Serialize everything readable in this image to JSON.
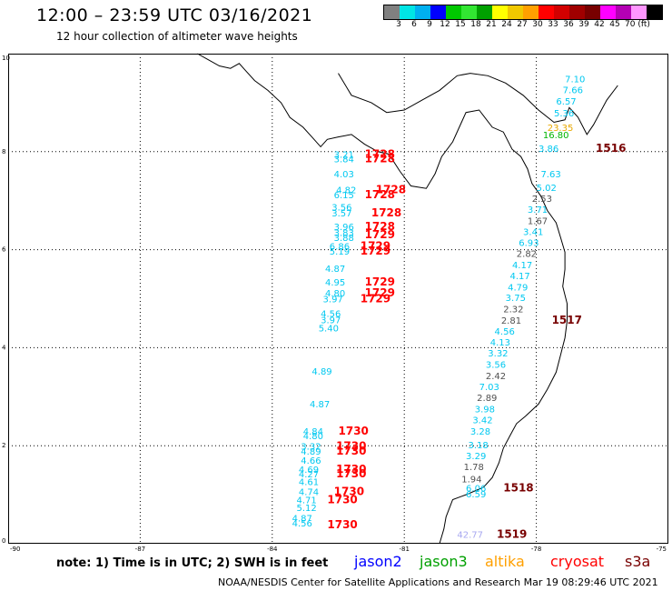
{
  "title": "12:00 – 23:59 UTC 03/16/2021",
  "subtitle": "12 hour collection of altimeter wave heights",
  "scale": {
    "colors": [
      "#808080",
      "#00e5e5",
      "#00b0f0",
      "#0000ff",
      "#00c800",
      "#32e632",
      "#00a000",
      "#ffff00",
      "#f0c800",
      "#ffa000",
      "#ff0000",
      "#d20000",
      "#a00000",
      "#780000",
      "#ff00ff",
      "#b400b4",
      "#ff96ff",
      "#000000"
    ],
    "labels": [
      "3",
      "6",
      "9",
      "12",
      "15",
      "18",
      "21",
      "24",
      "27",
      "30",
      "33",
      "36",
      "39",
      "42",
      "45",
      "70 (ft)"
    ]
  },
  "axes": {
    "x_ticks": [
      "-90",
      "-87",
      "-84",
      "-81",
      "-78",
      "-75"
    ],
    "y_ticks": [
      "0",
      "2",
      "4",
      "6",
      "8",
      "10"
    ],
    "lon_range": [
      -90,
      -75
    ],
    "lat_range": [
      0,
      10
    ]
  },
  "observations": [
    {
      "text": "7.10",
      "lon": -77.35,
      "lat": 9.42,
      "color": "#00c8f0"
    },
    {
      "text": "7.66",
      "lon": -77.4,
      "lat": 9.19,
      "color": "#00c8f0"
    },
    {
      "text": "6.57",
      "lon": -77.55,
      "lat": 8.96,
      "color": "#00c8f0"
    },
    {
      "text": "5.36",
      "lon": -77.6,
      "lat": 8.72,
      "color": "#00c8f0"
    },
    {
      "text": "23.35",
      "lon": -77.75,
      "lat": 8.42,
      "color": "#e8a800"
    },
    {
      "text": "16.80",
      "lon": -77.85,
      "lat": 8.27,
      "color": "#00b400"
    },
    {
      "text": "3.86",
      "lon": -77.95,
      "lat": 8.0,
      "color": "#00c8f0"
    },
    {
      "text": "1516",
      "lon": -76.65,
      "lat": 8.0,
      "color": "#780000"
    },
    {
      "text": "7.63",
      "lon": -77.9,
      "lat": 7.48,
      "color": "#00c8f0"
    },
    {
      "text": "5.02",
      "lon": -78.0,
      "lat": 7.2,
      "color": "#00c8f0"
    },
    {
      "text": "2.53",
      "lon": -78.1,
      "lat": 6.98,
      "color": "#505050"
    },
    {
      "text": "3.71",
      "lon": -78.2,
      "lat": 6.75,
      "color": "#00c8f0"
    },
    {
      "text": "1.67",
      "lon": -78.2,
      "lat": 6.52,
      "color": "#505050"
    },
    {
      "text": "3.41",
      "lon": -78.3,
      "lat": 6.3,
      "color": "#00c8f0"
    },
    {
      "text": "6.93",
      "lon": -78.4,
      "lat": 6.08,
      "color": "#00c8f0"
    },
    {
      "text": "2.82",
      "lon": -78.45,
      "lat": 5.85,
      "color": "#505050"
    },
    {
      "text": "4.17",
      "lon": -78.55,
      "lat": 5.62,
      "color": "#00c8f0"
    },
    {
      "text": "4.17",
      "lon": -78.6,
      "lat": 5.4,
      "color": "#00c8f0"
    },
    {
      "text": "4.79",
      "lon": -78.65,
      "lat": 5.17,
      "color": "#00c8f0"
    },
    {
      "text": "3.75",
      "lon": -78.7,
      "lat": 4.95,
      "color": "#00c8f0"
    },
    {
      "text": "2.32",
      "lon": -78.75,
      "lat": 4.72,
      "color": "#505050"
    },
    {
      "text": "2.81",
      "lon": -78.8,
      "lat": 4.49,
      "color": "#505050"
    },
    {
      "text": "1517",
      "lon": -77.65,
      "lat": 4.49,
      "color": "#780000"
    },
    {
      "text": "4.56",
      "lon": -78.95,
      "lat": 4.27,
      "color": "#00c8f0"
    },
    {
      "text": "4.13",
      "lon": -79.05,
      "lat": 4.04,
      "color": "#00c8f0"
    },
    {
      "text": "3.32",
      "lon": -79.1,
      "lat": 3.82,
      "color": "#00c8f0"
    },
    {
      "text": "3.56",
      "lon": -79.15,
      "lat": 3.59,
      "color": "#00c8f0"
    },
    {
      "text": "2.42",
      "lon": -79.15,
      "lat": 3.36,
      "color": "#505050"
    },
    {
      "text": "7.03",
      "lon": -79.3,
      "lat": 3.14,
      "color": "#00c8f0"
    },
    {
      "text": "2.89",
      "lon": -79.35,
      "lat": 2.91,
      "color": "#505050"
    },
    {
      "text": "3.98",
      "lon": -79.4,
      "lat": 2.68,
      "color": "#00c8f0"
    },
    {
      "text": "3.42",
      "lon": -79.45,
      "lat": 2.46,
      "color": "#00c8f0"
    },
    {
      "text": "3.28",
      "lon": -79.5,
      "lat": 2.23,
      "color": "#00c8f0"
    },
    {
      "text": "3.18",
      "lon": -79.55,
      "lat": 1.95,
      "color": "#00c8f0"
    },
    {
      "text": "3.29",
      "lon": -79.6,
      "lat": 1.73,
      "color": "#00c8f0"
    },
    {
      "text": "1.78",
      "lon": -79.65,
      "lat": 1.5,
      "color": "#505050"
    },
    {
      "text": "1.94",
      "lon": -79.7,
      "lat": 1.25,
      "color": "#505050"
    },
    {
      "text": "6.06",
      "lon": -79.6,
      "lat": 1.07,
      "color": "#00c8f0"
    },
    {
      "text": "6.59",
      "lon": -79.6,
      "lat": 0.95,
      "color": "#00c8f0"
    },
    {
      "text": "1518",
      "lon": -78.75,
      "lat": 1.07,
      "color": "#780000"
    },
    {
      "text": "42.77",
      "lon": -79.8,
      "lat": 0.12,
      "color": "#a8a8f0"
    },
    {
      "text": "1519",
      "lon": -78.9,
      "lat": 0.12,
      "color": "#780000"
    },
    {
      "text": "3.21",
      "lon": -82.6,
      "lat": 7.88,
      "color": "#00c8f0"
    },
    {
      "text": "3.84",
      "lon": -82.6,
      "lat": 7.78,
      "color": "#00c8f0"
    },
    {
      "text": "1728",
      "lon": -81.9,
      "lat": 7.88,
      "color": "#ff0000"
    },
    {
      "text": "1728",
      "lon": -81.9,
      "lat": 7.78,
      "color": "#ff0000"
    },
    {
      "text": "4.03",
      "lon": -82.6,
      "lat": 7.48,
      "color": "#00c8f0"
    },
    {
      "text": "4.82",
      "lon": -82.55,
      "lat": 7.15,
      "color": "#00c8f0"
    },
    {
      "text": "1728",
      "lon": -81.65,
      "lat": 7.15,
      "color": "#ff0000"
    },
    {
      "text": "6.15",
      "lon": -82.6,
      "lat": 7.05,
      "color": "#00c8f0"
    },
    {
      "text": "1728",
      "lon": -81.9,
      "lat": 7.05,
      "color": "#ff0000"
    },
    {
      "text": "3.56",
      "lon": -82.65,
      "lat": 6.8,
      "color": "#00c8f0"
    },
    {
      "text": "3.57",
      "lon": -82.65,
      "lat": 6.68,
      "color": "#00c8f0"
    },
    {
      "text": "1728",
      "lon": -81.75,
      "lat": 6.68,
      "color": "#ff0000"
    },
    {
      "text": "3.96",
      "lon": -82.6,
      "lat": 6.4,
      "color": "#00c8f0"
    },
    {
      "text": "1728",
      "lon": -81.9,
      "lat": 6.4,
      "color": "#ff0000"
    },
    {
      "text": "3.83",
      "lon": -82.6,
      "lat": 6.28,
      "color": "#00c8f0"
    },
    {
      "text": "3.88",
      "lon": -82.6,
      "lat": 6.18,
      "color": "#00c8f0"
    },
    {
      "text": "1729",
      "lon": -81.9,
      "lat": 6.23,
      "color": "#ff0000"
    },
    {
      "text": "6.86",
      "lon": -82.7,
      "lat": 6.0,
      "color": "#00c8f0"
    },
    {
      "text": "5.19",
      "lon": -82.7,
      "lat": 5.9,
      "color": "#00c8f0"
    },
    {
      "text": "1729",
      "lon": -82.0,
      "lat": 6.0,
      "color": "#ff0000"
    },
    {
      "text": "1729",
      "lon": -82.0,
      "lat": 5.9,
      "color": "#ff0000"
    },
    {
      "text": "4.87",
      "lon": -82.8,
      "lat": 5.55,
      "color": "#00c8f0"
    },
    {
      "text": "4.95",
      "lon": -82.8,
      "lat": 5.27,
      "color": "#00c8f0"
    },
    {
      "text": "1729",
      "lon": -81.9,
      "lat": 5.27,
      "color": "#ff0000"
    },
    {
      "text": "4.80",
      "lon": -82.8,
      "lat": 5.05,
      "color": "#00c8f0"
    },
    {
      "text": "1729",
      "lon": -81.9,
      "lat": 5.05,
      "color": "#ff0000"
    },
    {
      "text": "3.97",
      "lon": -82.85,
      "lat": 4.93,
      "color": "#00c8f0"
    },
    {
      "text": "1729",
      "lon": -82.0,
      "lat": 4.93,
      "color": "#ff0000"
    },
    {
      "text": "4.56",
      "lon": -82.9,
      "lat": 4.63,
      "color": "#00c8f0"
    },
    {
      "text": "3.97",
      "lon": -82.9,
      "lat": 4.5,
      "color": "#00c8f0"
    },
    {
      "text": "5.40",
      "lon": -82.95,
      "lat": 4.33,
      "color": "#00c8f0"
    },
    {
      "text": "4.89",
      "lon": -83.1,
      "lat": 3.45,
      "color": "#00c8f0"
    },
    {
      "text": "4.87",
      "lon": -83.15,
      "lat": 2.78,
      "color": "#00c8f0"
    },
    {
      "text": "4.84",
      "lon": -83.3,
      "lat": 2.23,
      "color": "#00c8f0"
    },
    {
      "text": "4.80",
      "lon": -83.3,
      "lat": 2.13,
      "color": "#00c8f0"
    },
    {
      "text": "1730",
      "lon": -82.5,
      "lat": 2.23,
      "color": "#ff0000"
    },
    {
      "text": "3.32",
      "lon": -83.35,
      "lat": 1.92,
      "color": "#00c8f0"
    },
    {
      "text": "4.89",
      "lon": -83.35,
      "lat": 1.82,
      "color": "#00c8f0"
    },
    {
      "text": "1730",
      "lon": -82.55,
      "lat": 1.92,
      "color": "#ff0000"
    },
    {
      "text": "1730",
      "lon": -82.55,
      "lat": 1.82,
      "color": "#ff0000"
    },
    {
      "text": "4.66",
      "lon": -83.35,
      "lat": 1.63,
      "color": "#00c8f0"
    },
    {
      "text": "4.69",
      "lon": -83.4,
      "lat": 1.45,
      "color": "#00c8f0"
    },
    {
      "text": "4.27",
      "lon": -83.4,
      "lat": 1.35,
      "color": "#00c8f0"
    },
    {
      "text": "1730",
      "lon": -82.55,
      "lat": 1.45,
      "color": "#ff0000"
    },
    {
      "text": "1730",
      "lon": -82.55,
      "lat": 1.35,
      "color": "#ff0000"
    },
    {
      "text": "4.61",
      "lon": -83.4,
      "lat": 1.2,
      "color": "#00c8f0"
    },
    {
      "text": "4.74",
      "lon": -83.4,
      "lat": 0.99,
      "color": "#00c8f0"
    },
    {
      "text": "1730",
      "lon": -82.6,
      "lat": 0.99,
      "color": "#ff0000"
    },
    {
      "text": "4.71",
      "lon": -83.45,
      "lat": 0.83,
      "color": "#00c8f0"
    },
    {
      "text": "1730",
      "lon": -82.75,
      "lat": 0.83,
      "color": "#ff0000"
    },
    {
      "text": "5.12",
      "lon": -83.45,
      "lat": 0.67,
      "color": "#00c8f0"
    },
    {
      "text": "4.87",
      "lon": -83.55,
      "lat": 0.45,
      "color": "#00c8f0"
    },
    {
      "text": "4.56",
      "lon": -83.55,
      "lat": 0.35,
      "color": "#00c8f0"
    },
    {
      "text": "1730",
      "lon": -82.75,
      "lat": 0.32,
      "color": "#ff0000"
    }
  ],
  "footer": {
    "note": "note: 1) Time is in UTC; 2) SWH is in feet",
    "legend": [
      {
        "label": "jason2",
        "color": "#0000ff"
      },
      {
        "label": "jason3",
        "color": "#00a000"
      },
      {
        "label": "altika",
        "color": "#ffa000"
      },
      {
        "label": "cryosat",
        "color": "#ff0000"
      },
      {
        "label": "s3a",
        "color": "#780000"
      }
    ],
    "credit": "NOAA/NESDIS Center for Satellite Applications and Research   Mar 19 08:29:46 UTC 2021"
  }
}
